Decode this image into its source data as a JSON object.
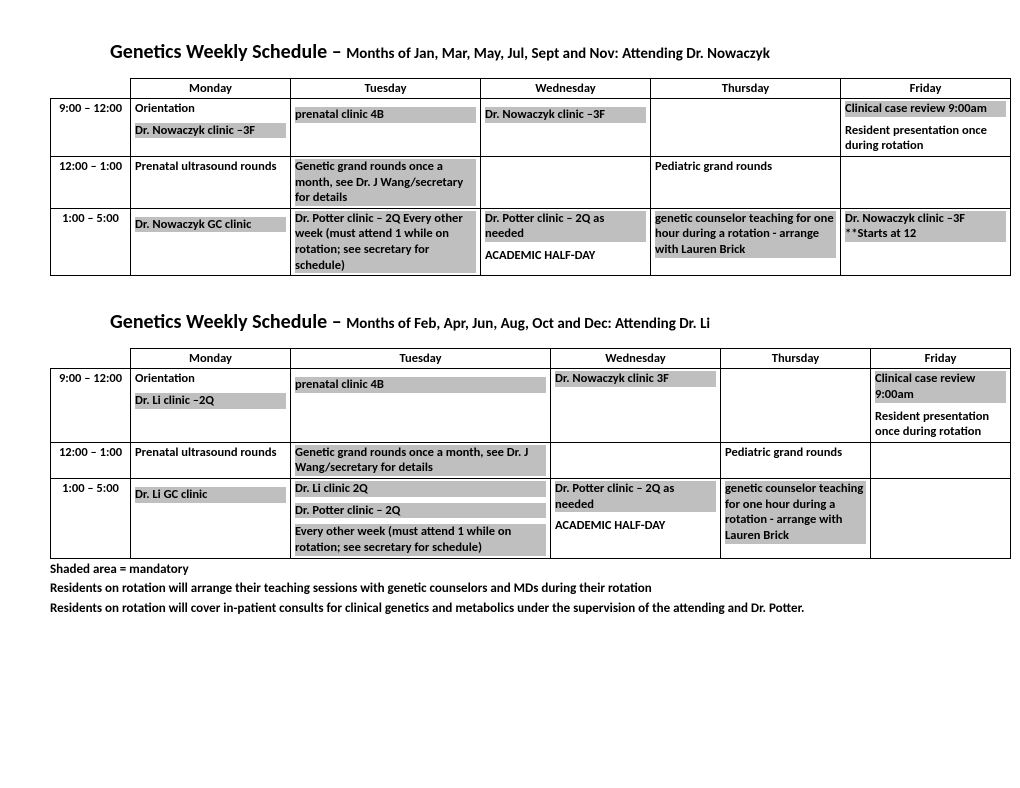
{
  "schedule1": {
    "title_main": "Genetics Weekly Schedule – ",
    "title_sub": "Months of Jan, Mar, May, Jul, Sept and Nov: Attending Dr. Nowaczyk",
    "headers": [
      "",
      "Monday",
      "Tuesday",
      "Wednesday",
      "Thursday",
      "Friday"
    ],
    "col_widths": [
      "80px",
      "160px",
      "190px",
      "170px",
      "190px",
      "170px"
    ],
    "rows": [
      {
        "time": "9:00 – 12:00",
        "mon": [
          {
            "text": "Orientation",
            "shaded": false
          },
          {
            "text": "Dr. Nowaczyk clinic –3F",
            "shaded": true
          }
        ],
        "tue": [
          {
            "text": " ",
            "shaded": true
          },
          {
            "text": "prenatal clinic 4B",
            "shaded": true
          }
        ],
        "wed": [
          {
            "text": " ",
            "shaded": true
          },
          {
            "text": "Dr. Nowaczyk clinic –3F",
            "shaded": true
          }
        ],
        "thu": [],
        "fri": [
          {
            "text": "Clinical case review 9:00am",
            "shaded": true
          },
          {
            "text": "Resident presentation once during rotation",
            "shaded": false
          }
        ]
      },
      {
        "time": "12:00 – 1:00",
        "mon": [
          {
            "text": "Prenatal ultrasound rounds",
            "shaded": false
          }
        ],
        "tue": [
          {
            "text": "Genetic grand rounds once a month, see Dr. J Wang/secretary for details",
            "shaded": true
          }
        ],
        "wed": [],
        "thu": [
          {
            "text": "Pediatric grand rounds",
            "shaded": false
          }
        ],
        "fri": []
      },
      {
        "time": "1:00 – 5:00",
        "mon": [
          {
            "text": " ",
            "shaded": false
          },
          {
            "text": "Dr. Nowaczyk GC clinic",
            "shaded": true
          }
        ],
        "tue": [
          {
            "text": "Dr. Potter clinic – 2Q Every other week (must attend 1 while on rotation; see secretary for schedule)",
            "shaded": true
          }
        ],
        "wed": [
          {
            "text": "Dr. Potter clinic – 2Q as needed",
            "shaded": true
          },
          {
            "text": "ACADEMIC HALF-DAY",
            "shaded": false
          }
        ],
        "thu": [
          {
            "text": "genetic counselor teaching  for one hour  during a rotation - arrange with Lauren Brick",
            "shaded": true
          }
        ],
        "fri": [
          {
            "text": "Dr. Nowaczyk clinic –3F **Starts at 12",
            "shaded": true
          }
        ]
      }
    ]
  },
  "schedule2": {
    "title_main": "Genetics Weekly Schedule – ",
    "title_sub": "Months of Feb, Apr, Jun, Aug, Oct and Dec: Attending Dr. Li",
    "headers": [
      "",
      "Monday",
      "Tuesday",
      "Wednesday",
      "Thursday",
      "Friday"
    ],
    "col_widths": [
      "80px",
      "160px",
      "260px",
      "170px",
      "150px",
      "140px"
    ],
    "rows": [
      {
        "time": "9:00 – 12:00",
        "mon": [
          {
            "text": "Orientation",
            "shaded": false
          },
          {
            "text": "Dr. Li clinic –2Q",
            "shaded": true
          }
        ],
        "tue": [
          {
            "text": " ",
            "shaded": true
          },
          {
            "text": "prenatal clinic 4B",
            "shaded": true
          }
        ],
        "wed": [
          {
            "text": "Dr. Nowaczyk clinic 3F",
            "shaded": true
          }
        ],
        "thu": [],
        "fri": [
          {
            "text": "Clinical case review 9:00am",
            "shaded": true
          },
          {
            "text": "Resident presentation once during rotation",
            "shaded": false
          }
        ]
      },
      {
        "time": "12:00 – 1:00",
        "mon": [
          {
            "text": "Prenatal ultrasound rounds",
            "shaded": false
          }
        ],
        "tue": [
          {
            "text": "Genetic grand rounds once a month, see Dr. J Wang/secretary for details",
            "shaded": true
          }
        ],
        "wed": [],
        "thu": [
          {
            "text": "Pediatric grand rounds",
            "shaded": false
          }
        ],
        "fri": []
      },
      {
        "time": "1:00 – 5:00",
        "mon": [
          {
            "text": " ",
            "shaded": false
          },
          {
            "text": "Dr. Li  GC clinic",
            "shaded": true
          }
        ],
        "tue": [
          {
            "text": "Dr. Li clinic 2Q",
            "shaded": true
          },
          {
            "text": "Dr. Potter clinic – 2Q",
            "shaded": true
          },
          {
            "text": "Every other week (must attend 1 while on rotation; see secretary for schedule)",
            "shaded": true
          }
        ],
        "wed": [
          {
            "text": "Dr. Potter clinic – 2Q as needed",
            "shaded": true
          },
          {
            "text": "ACADEMIC HALF-DAY",
            "shaded": false
          }
        ],
        "thu": [
          {
            "text": "genetic counselor teaching  for one hour  during a rotation - arrange with Lauren Brick",
            "shaded": true
          }
        ],
        "fri": []
      }
    ]
  },
  "footnotes": [
    "Shaded area = mandatory",
    "Residents on rotation will arrange their teaching sessions with genetic counselors and MDs during their rotation",
    "Residents on rotation will cover in-patient consults for clinical genetics and metabolics under the supervision of the attending and Dr. Potter."
  ],
  "style": {
    "shaded_color": "#bfbfbf",
    "background_color": "#ffffff",
    "border_color": "#000000",
    "font_family": "Calibri, Arial, sans-serif",
    "title_main_fontsize": 20,
    "title_sub_fontsize": 15,
    "table_fontsize": 12.5,
    "footnote_fontsize": 13
  }
}
